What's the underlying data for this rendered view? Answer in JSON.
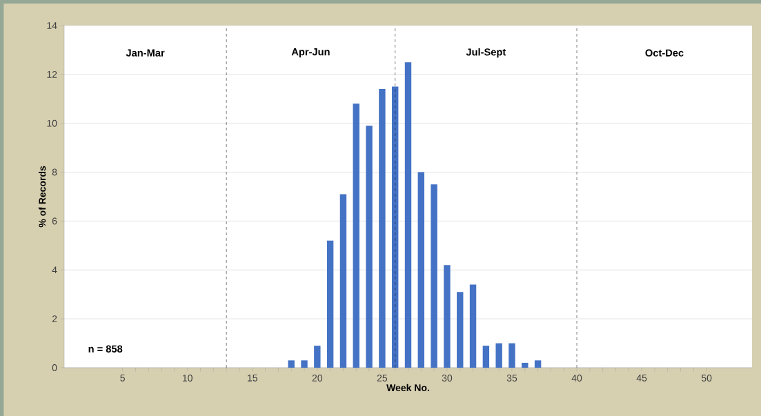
{
  "chart_data": {
    "type": "bar",
    "xlabel": "Week No.",
    "ylabel": "% of Records",
    "x": [
      18,
      19,
      20,
      21,
      22,
      23,
      24,
      25,
      26,
      27,
      28,
      29,
      30,
      31,
      32,
      33,
      34,
      35,
      36,
      37
    ],
    "values": [
      0.3,
      0.3,
      0.9,
      5.2,
      7.1,
      10.8,
      9.9,
      11.4,
      11.5,
      12.5,
      8.0,
      7.5,
      4.2,
      3.1,
      3.4,
      0.9,
      1.0,
      1.0,
      0.2,
      0.3
    ],
    "color": "#4472c4",
    "xlim": [
      0.5,
      53.5
    ],
    "xticks": [
      5,
      10,
      15,
      20,
      25,
      30,
      35,
      40,
      45,
      50
    ],
    "ylim": [
      0,
      14
    ],
    "yticks": [
      0,
      2,
      4,
      6,
      8,
      10,
      12,
      14
    ],
    "grid": "y",
    "ref_lines": [
      {
        "axis": "x",
        "value": 13,
        "color": "#000000",
        "line_style": "dashed"
      },
      {
        "axis": "x",
        "value": 26,
        "color": "#000000",
        "line_style": "dashed"
      },
      {
        "axis": "x",
        "value": 40,
        "color": "#000000",
        "line_style": "dashed"
      }
    ],
    "annotations": [
      "Jan-Mar",
      "Apr-Jun",
      "Jul-Sept",
      "Oct-Dec",
      "n = 858"
    ]
  }
}
